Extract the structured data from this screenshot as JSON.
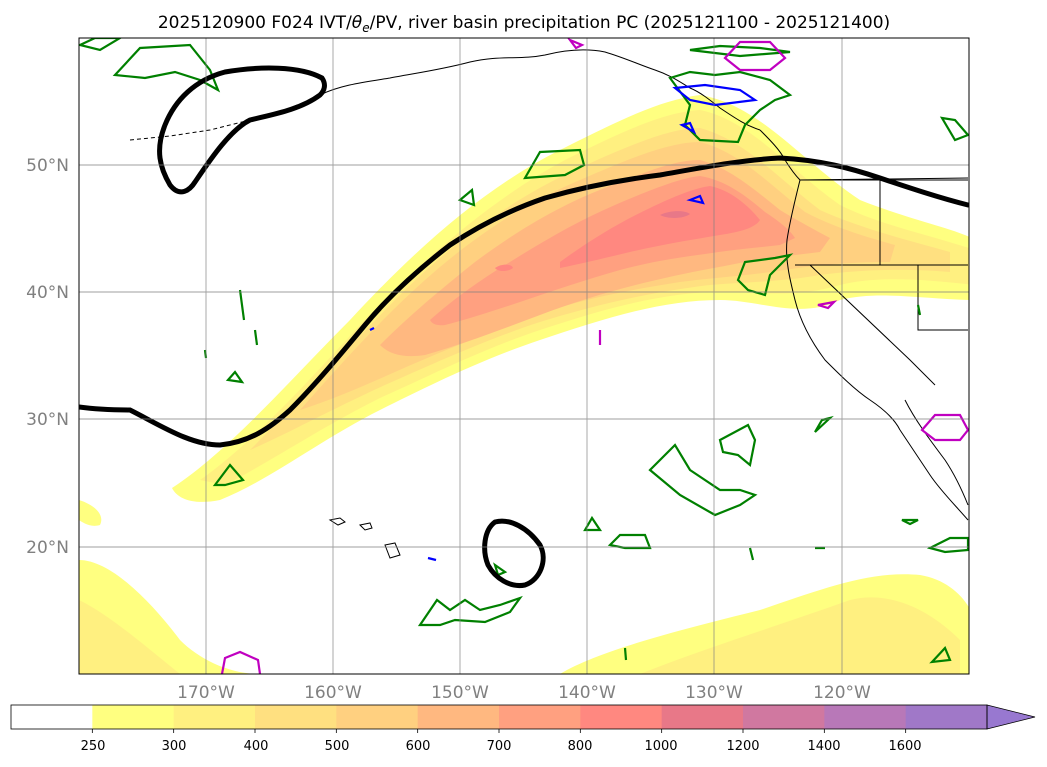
{
  "title": "2025120900 F024 IVT/",
  "title_theta": "θ",
  "title_theta_sub": "e",
  "title_rest": "/PV, river basin precipitation PC (2025121100 - 2025121400)",
  "map": {
    "lat_labels": [
      "50°N",
      "40°N",
      "30°N",
      "20°N"
    ],
    "lon_labels": [
      "170°W",
      "160°W",
      "150°W",
      "140°W",
      "130°W",
      "120°W"
    ],
    "ivt_fill_colors": {
      "250": "#ffff80",
      "300": "#fff080",
      "400": "#ffe080",
      "500": "#ffd080",
      "600": "#ffb880",
      "700": "#ffa080",
      "800": "#ff8880",
      "1000": "#e87888",
      "1200": "#d078a0",
      "1400": "#b878b8",
      "1600": "#a078c8"
    },
    "contour_colors": {
      "pv": "#000000",
      "theta_e_green": "#008000",
      "blue": "#0000ff",
      "magenta": "#c000c0"
    }
  },
  "colorbar": {
    "labels": [
      "250",
      "300",
      "400",
      "500",
      "600",
      "700",
      "800",
      "1000",
      "1200",
      "1400",
      "1600"
    ],
    "colors": [
      "#ffffff",
      "#ffff80",
      "#fff080",
      "#ffe080",
      "#ffd080",
      "#ffb880",
      "#ffa080",
      "#ff8880",
      "#e87888",
      "#d078a0",
      "#b878b8",
      "#a078c8"
    ],
    "extend_color": "#9878d0"
  }
}
